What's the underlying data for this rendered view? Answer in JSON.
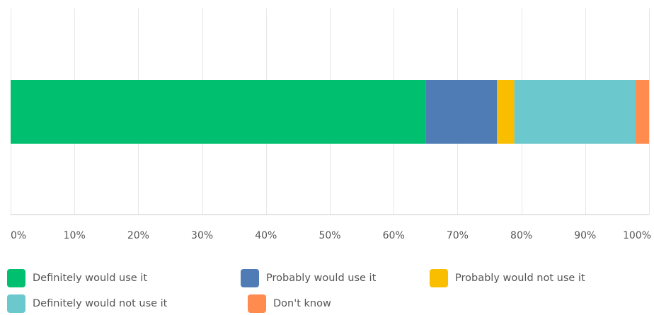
{
  "chart_data": {
    "type": "bar",
    "orientation": "horizontal",
    "stacked": true,
    "categories": [
      ""
    ],
    "series": [
      {
        "name": "Definitely would use it",
        "values": [
          65
        ],
        "color": "#00bf6f"
      },
      {
        "name": "Probably would use it",
        "values": [
          11.2
        ],
        "color": "#507cb6"
      },
      {
        "name": "Probably would not use it",
        "values": [
          2.7
        ],
        "color": "#f9be00"
      },
      {
        "name": "Definitely would not use it",
        "values": [
          19
        ],
        "color": "#6bc8cd"
      },
      {
        "name": "Don't know",
        "values": [
          2.1
        ],
        "color": "#ff8b4f"
      }
    ],
    "xlim": [
      0,
      100
    ],
    "x_ticks": [
      "0%",
      "10%",
      "20%",
      "30%",
      "40%",
      "50%",
      "60%",
      "70%",
      "80%",
      "90%",
      "100%"
    ],
    "grid": true,
    "legend_position": "bottom",
    "title": "",
    "xlabel": "",
    "ylabel": ""
  },
  "colors": {
    "grid": "#e6e6e6",
    "axis": "#cccccc",
    "text": "#555555"
  }
}
